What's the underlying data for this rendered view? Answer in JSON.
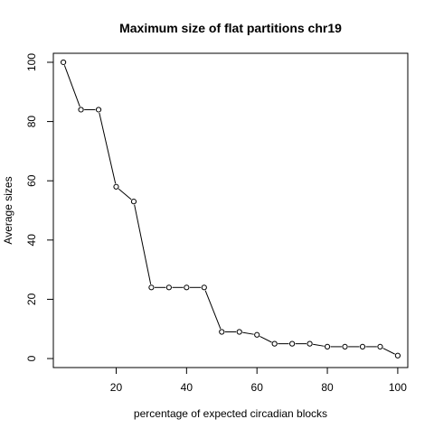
{
  "chart_data": {
    "type": "line",
    "title": "Maximum size of flat partitions chr19",
    "xlabel": "percentage of expected circadian blocks",
    "ylabel": "Average sizes",
    "x": [
      5,
      10,
      15,
      20,
      25,
      30,
      35,
      40,
      45,
      50,
      55,
      60,
      65,
      70,
      75,
      80,
      85,
      90,
      95,
      100
    ],
    "y": [
      100,
      84,
      84,
      58,
      53,
      24,
      24,
      24,
      24,
      9,
      9,
      8,
      5,
      5,
      5,
      4,
      4,
      4,
      4,
      1
    ],
    "xlim": [
      2.15,
      102.85
    ],
    "ylim": [
      -3.04,
      103.04
    ],
    "xticks": [
      20,
      40,
      60,
      80,
      100
    ],
    "yticks": [
      0,
      20,
      40,
      60,
      80,
      100
    ],
    "xtick_labels": [
      "20",
      "40",
      "60",
      "80",
      "100"
    ],
    "ytick_labels": [
      "0",
      "20",
      "40",
      "60",
      "80",
      "100"
    ],
    "grid": false,
    "line_color": "#000000",
    "marker": "open-circle"
  }
}
